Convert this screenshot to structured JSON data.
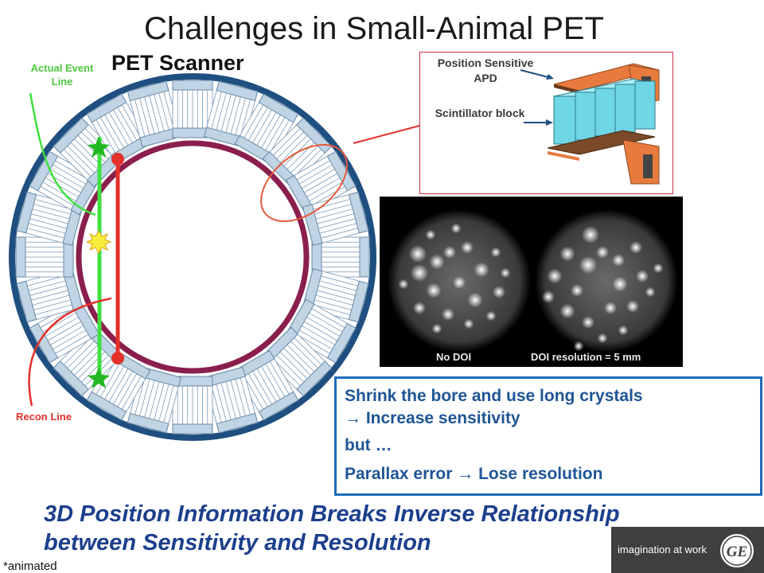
{
  "slide": {
    "title": "Challenges in Small-Animal PET",
    "scanner_label": "PET Scanner",
    "actual_event_line": "Actual Event Line",
    "recon_line": "Recon Line",
    "inset": {
      "position_label": "Position Sensitive APD",
      "scintillator_label": "Scintillator block"
    },
    "images": {
      "left_label": "No DOI",
      "right_label": "DOI resolution = 5 mm"
    },
    "textbox": {
      "line1": "Shrink the bore and use long crystals",
      "line2": "→ Increase sensitivity",
      "line3": "but …",
      "line4": "Parallax error → Lose resolution"
    },
    "bottom_line1": "3D Position Information Breaks Inverse Relationship",
    "bottom_line2": "between Sensitivity and Resolution",
    "footnote": "*animated",
    "logo_text": "imagination at work",
    "logo_mark": "GE"
  },
  "colors": {
    "ring_outer": "#1e4f80",
    "bore": "#8a1f4e",
    "actual_line": "#3fe03f",
    "recon_line": "#e4302a",
    "textbox_border": "#1e6bb8",
    "bottom_text": "#1c3f8c",
    "crystal": "#c0d4e4",
    "apd": "#e97a3e",
    "scintillator": "#6fd6e6"
  },
  "icons": [
    "star-icon",
    "burst-icon",
    "ge-logo-icon"
  ]
}
